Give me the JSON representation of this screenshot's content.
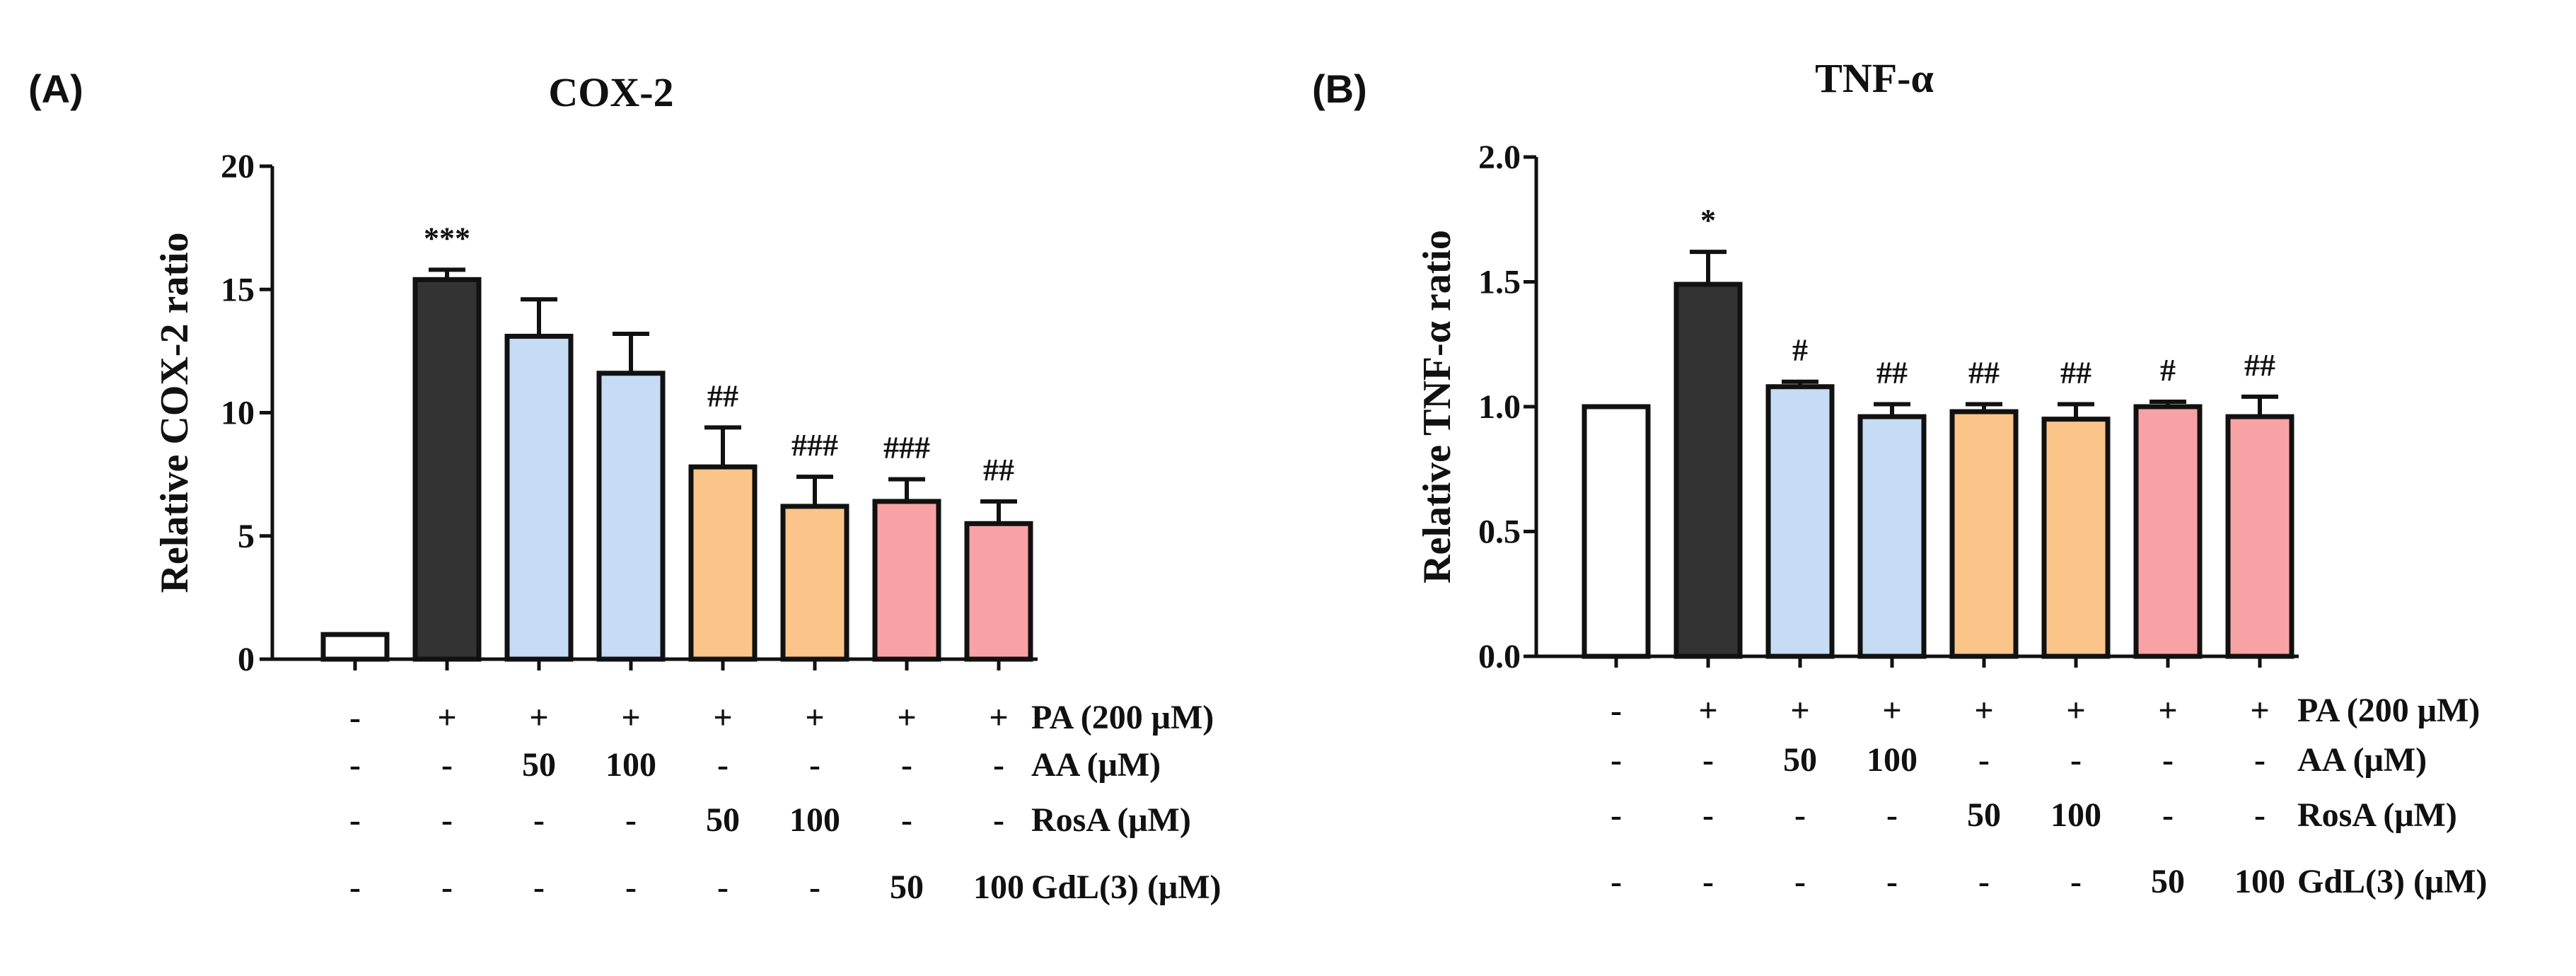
{
  "chart_data": [
    {
      "type": "bar",
      "panel_label": "(A)",
      "title": "COX-2",
      "ylabel": "Relative COX-2 ratio",
      "xlabel": "",
      "ylim": [
        0,
        20
      ],
      "yticks": [
        "0",
        "5",
        "10",
        "15",
        "20"
      ],
      "ytick_values": [
        0,
        5,
        10,
        15,
        20
      ],
      "values": [
        1.0,
        15.4,
        13.1,
        11.6,
        7.8,
        6.2,
        6.4,
        5.5
      ],
      "errors": [
        0,
        0.4,
        1.5,
        1.6,
        1.6,
        1.2,
        0.9,
        0.9
      ],
      "significance": [
        "",
        "***",
        "",
        "",
        "##",
        "###",
        "###",
        "##"
      ],
      "colors": [
        "#ffffff",
        "#333333",
        "#c6dcf5",
        "#c6dcf5",
        "#fbc58a",
        "#fbc58a",
        "#f9a2a5",
        "#f9a2a5"
      ],
      "condition_rows": [
        {
          "label": "PA (200 μM)",
          "values": [
            "-",
            "+",
            "+",
            "+",
            "+",
            "+",
            "+",
            "+"
          ]
        },
        {
          "label": "AA (μM)",
          "values": [
            "-",
            "-",
            "50",
            "100",
            "-",
            "-",
            "-",
            "-"
          ]
        },
        {
          "label": "RosA (μM)",
          "values": [
            "-",
            "-",
            "-",
            "-",
            "50",
            "100",
            "-",
            "-"
          ]
        },
        {
          "label": "GdL(3) (μM)",
          "values": [
            "-",
            "-",
            "-",
            "-",
            "-",
            "-",
            "50",
            "100"
          ]
        }
      ]
    },
    {
      "type": "bar",
      "panel_label": "(B)",
      "title": "TNF-α",
      "ylabel": "Relative TNF-α ratio",
      "xlabel": "",
      "ylim": [
        0,
        2.0
      ],
      "yticks": [
        "0.0",
        "0.5",
        "1.0",
        "1.5",
        "2.0"
      ],
      "ytick_values": [
        0,
        0.5,
        1.0,
        1.5,
        2.0
      ],
      "values": [
        1.0,
        1.49,
        1.08,
        0.96,
        0.98,
        0.95,
        1.0,
        0.96
      ],
      "errors": [
        0,
        0.13,
        0.02,
        0.05,
        0.03,
        0.06,
        0.02,
        0.08
      ],
      "significance": [
        "",
        "*",
        "#",
        "##",
        "##",
        "##",
        "#",
        "##"
      ],
      "colors": [
        "#ffffff",
        "#333333",
        "#c6dcf5",
        "#c6dcf5",
        "#fbc58a",
        "#fbc58a",
        "#f9a2a5",
        "#f9a2a5"
      ],
      "condition_rows": [
        {
          "label": "PA (200 μM)",
          "values": [
            "-",
            "+",
            "+",
            "+",
            "+",
            "+",
            "+",
            "+"
          ]
        },
        {
          "label": "AA (μM)",
          "values": [
            "-",
            "-",
            "50",
            "100",
            "-",
            "-",
            "-",
            "-"
          ]
        },
        {
          "label": "RosA (μM)",
          "values": [
            "-",
            "-",
            "-",
            "-",
            "50",
            "100",
            "-",
            "-"
          ]
        },
        {
          "label": "GdL(3) (μM)",
          "values": [
            "-",
            "-",
            "-",
            "-",
            "-",
            "-",
            "50",
            "100"
          ]
        }
      ]
    }
  ]
}
